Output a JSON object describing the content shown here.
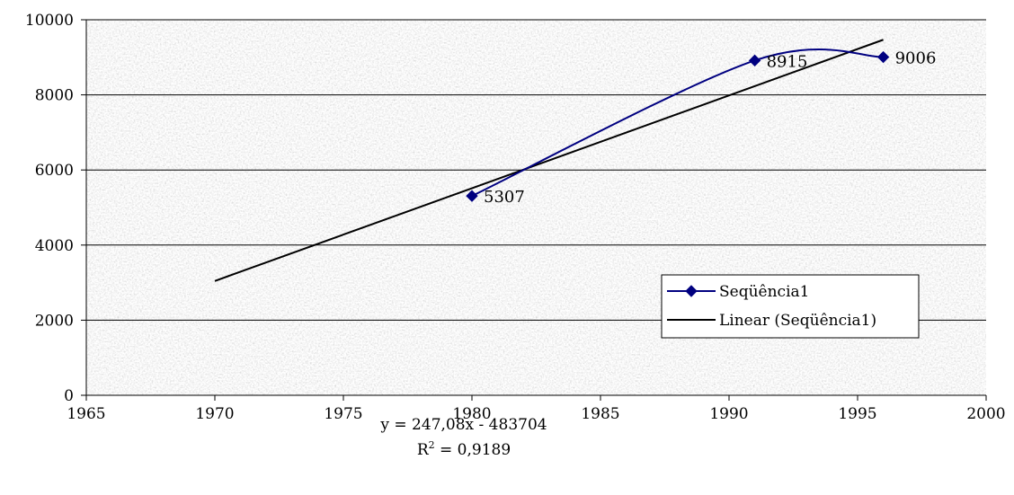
{
  "chart_data": {
    "type": "scatter",
    "title": "",
    "xlabel": "",
    "ylabel": "",
    "xlim": [
      1965,
      2000
    ],
    "ylim": [
      0,
      10000
    ],
    "x_ticks": [
      1965,
      1970,
      1975,
      1980,
      1985,
      1990,
      1995,
      2000
    ],
    "y_ticks": [
      0,
      2000,
      4000,
      6000,
      8000,
      10000
    ],
    "grid": "horizontal",
    "background": "speckled gray texture",
    "series": [
      {
        "name": "Seqüência1",
        "x": [
          1980,
          1991,
          1996
        ],
        "y": [
          5307,
          8915,
          9006
        ],
        "data_labels": [
          "5307",
          "8915",
          "9006"
        ],
        "marker": "diamond",
        "line": "smoothed",
        "color": "#000080"
      }
    ],
    "trendline": {
      "name": "Linear (Seqüência1)",
      "type": "linear",
      "slope": 247.08,
      "intercept": -483704,
      "x_range": [
        1970,
        1996
      ],
      "color": "#000000",
      "equation_text": "y = 247,08x - 483704",
      "r2_prefix": "R",
      "r2_superscript": "2",
      "r2_value_text": " = 0,9189"
    },
    "legend": {
      "position": "right",
      "entries": [
        "Seqüência1",
        "Linear (Seqüência1)"
      ]
    }
  }
}
